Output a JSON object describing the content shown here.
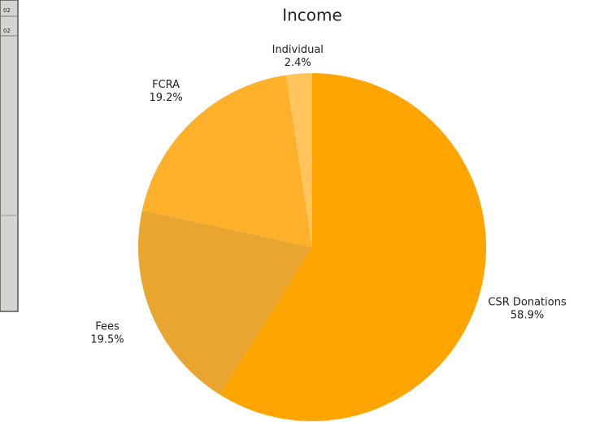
{
  "chart_data": {
    "type": "pie",
    "title": "Income",
    "categories": [
      "CSR Donations",
      "Fees",
      "FCRA",
      "Individual"
    ],
    "values": [
      58.9,
      19.5,
      19.2,
      2.4
    ],
    "value_labels": [
      "58.9%",
      "19.5%",
      "19.2%",
      "2.4%"
    ],
    "colors": [
      "#ffa500",
      "#e8a530",
      "#fdb12a",
      "#ffc55c"
    ]
  },
  "side_fragment": [
    "02",
    "02"
  ]
}
